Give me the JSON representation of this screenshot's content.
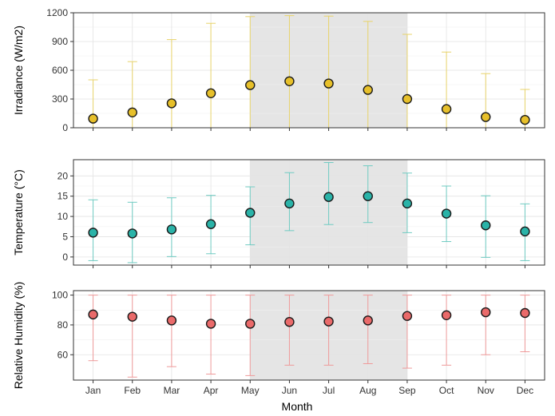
{
  "chart_data": {
    "type": "scatter",
    "x_categories": [
      "Jan",
      "Feb",
      "Mar",
      "Apr",
      "May",
      "Jun",
      "Jul",
      "Aug",
      "Sep",
      "Oct",
      "Nov",
      "Dec"
    ],
    "xlabel": "Month",
    "shared_x_axis": true,
    "grid": true,
    "shaded_months": [
      "May",
      "Jun",
      "Jul",
      "Aug",
      "Sep"
    ],
    "shade_color": "#e5e5e5",
    "panels": [
      {
        "ylabel": "Irradiance (W/m2)",
        "ylim": [
          0,
          1200
        ],
        "yticks": [
          0,
          300,
          600,
          900,
          1200
        ],
        "color": "#e7c02a",
        "bar_color": "#e8d36a",
        "values": [
          95,
          160,
          255,
          360,
          445,
          485,
          462,
          395,
          300,
          195,
          112,
          82
        ],
        "lower": [
          0,
          0,
          0,
          0,
          0,
          0,
          0,
          0,
          0,
          0,
          0,
          0
        ],
        "upper": [
          500,
          690,
          920,
          1090,
          1160,
          1170,
          1165,
          1110,
          975,
          790,
          565,
          400
        ]
      },
      {
        "ylabel": "Temperature (°C)",
        "ylim": [
          -2,
          24
        ],
        "yticks": [
          0,
          5,
          10,
          15,
          20
        ],
        "color": "#2ab3a8",
        "bar_color": "#6fcbc2",
        "values": [
          6,
          5.8,
          6.8,
          8.1,
          10.9,
          13.2,
          14.8,
          15,
          13.2,
          10.7,
          7.8,
          6.3
        ],
        "lower": [
          -0.9,
          -1.4,
          0.1,
          0.8,
          3,
          6.5,
          8,
          8.5,
          6,
          3.8,
          -0.1,
          -0.9
        ],
        "upper": [
          14.1,
          13.5,
          14.6,
          15.2,
          17.3,
          20.8,
          23.3,
          22.5,
          20.7,
          17.5,
          15.1,
          13.1
        ]
      },
      {
        "ylabel": "Relative Humidity (%)",
        "ylim": [
          43,
          103
        ],
        "yticks": [
          60,
          80,
          100
        ],
        "color": "#ea6a6a",
        "bar_color": "#ef9a9a",
        "values": [
          87,
          85.5,
          83,
          80.8,
          80.8,
          82,
          82.3,
          83,
          86,
          86.5,
          88.5,
          88
        ],
        "lower": [
          56,
          45,
          52,
          47,
          46,
          53,
          53,
          54,
          51,
          53,
          60,
          62
        ],
        "upper": [
          100,
          100,
          100,
          100,
          100,
          100,
          100,
          100,
          100,
          100,
          100,
          100
        ]
      }
    ]
  }
}
